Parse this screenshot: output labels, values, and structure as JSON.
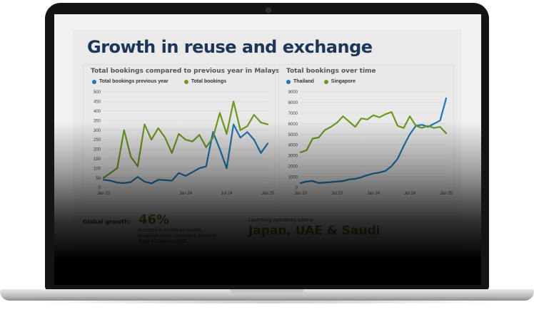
{
  "slide": {
    "title": "Growth in reuse and exchange",
    "global_growth_label": "Global growth:",
    "global_growth_value": "46%",
    "global_growth_desc": "increase in month-on-month bookings when comparing January 2024 to January 2025.",
    "launch_label": "Launching operations soon in",
    "launch_value": "Japan, UAE & Saudi"
  },
  "colors": {
    "blue": "#1f77b4",
    "green": "#6b9a1f",
    "title": "#1d3557"
  },
  "chart_data": [
    {
      "type": "line",
      "title": "Total bookings compared to  previous year in Malaysia",
      "ylim": [
        0,
        500
      ],
      "yticks": [
        0,
        50,
        100,
        150,
        200,
        250,
        300,
        350,
        400,
        450,
        500
      ],
      "xticks": [
        {
          "label": "Jan 23",
          "x": 0
        },
        {
          "label": "Jan 24",
          "x": 12
        },
        {
          "label": "Jul 24",
          "x": 18
        },
        {
          "label": "Jan 25",
          "x": 24
        }
      ],
      "grid": true,
      "legend": "top-left",
      "series": [
        {
          "name": "Total bookings previous year",
          "color": "#1f77b4",
          "x": [
            0,
            1,
            2,
            3,
            4,
            5,
            6,
            7,
            8,
            9,
            10,
            11,
            12,
            13,
            14,
            15,
            16,
            17,
            18,
            19,
            20,
            21,
            22,
            23,
            24
          ],
          "values": [
            40,
            35,
            25,
            22,
            28,
            55,
            30,
            20,
            40,
            38,
            35,
            75,
            60,
            80,
            100,
            110,
            290,
            200,
            100,
            330,
            260,
            290,
            250,
            180,
            230
          ]
        },
        {
          "name": "Total bookings",
          "color": "#6b9a1f",
          "x": [
            0,
            1,
            2,
            3,
            4,
            5,
            6,
            7,
            8,
            9,
            10,
            11,
            12,
            13,
            14,
            15,
            16,
            17,
            18,
            19,
            20,
            21,
            22,
            23,
            24
          ],
          "values": [
            50,
            75,
            100,
            300,
            160,
            110,
            330,
            250,
            310,
            260,
            180,
            280,
            250,
            240,
            275,
            210,
            260,
            390,
            280,
            450,
            300,
            320,
            380,
            340,
            330
          ]
        }
      ]
    },
    {
      "type": "line",
      "title": "Total bookings over time",
      "ylim": [
        0,
        9000
      ],
      "yticks": [
        0,
        1000,
        2000,
        3000,
        4000,
        5000,
        6000,
        7000,
        8000,
        9000
      ],
      "xticks": [
        {
          "label": "Jan 23",
          "x": 0
        },
        {
          "label": "Jul 23",
          "x": 6
        },
        {
          "label": "Jan 24",
          "x": 12
        },
        {
          "label": "Jul 24",
          "x": 18
        },
        {
          "label": "Jan 25",
          "x": 24
        }
      ],
      "grid": true,
      "legend": "top-left",
      "series": [
        {
          "name": "Thailand",
          "color": "#1f77b4",
          "x": [
            0,
            1,
            2,
            3,
            4,
            5,
            6,
            7,
            8,
            9,
            10,
            11,
            12,
            13,
            14,
            15,
            16,
            17,
            18,
            19,
            20,
            21,
            22,
            23,
            24
          ],
          "values": [
            400,
            550,
            600,
            400,
            450,
            500,
            550,
            600,
            750,
            800,
            950,
            1150,
            1300,
            1400,
            1550,
            2000,
            2700,
            3900,
            5000,
            5800,
            5900,
            5700,
            6000,
            6300,
            8400
          ]
        },
        {
          "name": "Singapore",
          "color": "#6b9a1f",
          "x": [
            0,
            1,
            2,
            3,
            4,
            5,
            6,
            7,
            8,
            9,
            10,
            11,
            12,
            13,
            14,
            15,
            16,
            17,
            18,
            19,
            20,
            21,
            22,
            23,
            24
          ],
          "values": [
            3300,
            3500,
            4600,
            4700,
            5400,
            5700,
            6100,
            6700,
            6200,
            5700,
            6500,
            6400,
            6800,
            6600,
            6900,
            7100,
            5800,
            5600,
            6700,
            5800,
            5600,
            5800,
            5600,
            5700,
            5100
          ]
        }
      ]
    }
  ]
}
